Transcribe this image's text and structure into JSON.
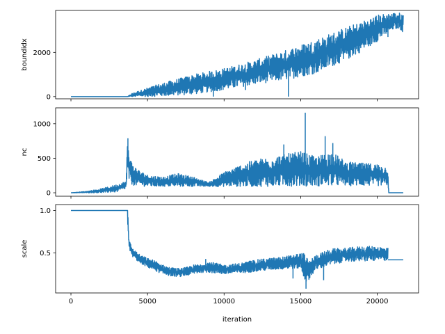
{
  "colors": {
    "series": "#1f77b4"
  },
  "chart_data": [
    {
      "type": "line",
      "id": "boundidx",
      "ylabel": "boundidx",
      "xlabel": "",
      "xlim": [
        -1000,
        22700
      ],
      "ylim": [
        -100,
        3900
      ],
      "xticks": [
        0,
        5000,
        10000,
        15000,
        20000
      ],
      "xtick_labels": [
        "",
        "",
        "",
        "",
        ""
      ],
      "yticks": [
        0,
        2000
      ],
      "ytick_labels": [
        "0",
        "2000"
      ],
      "series": [
        {
          "envelope": {
            "x": [
              0,
              3500,
              3700,
              4000,
              5000,
              6000,
              8000,
              10000,
              12000,
              14000,
              16000,
              18000,
              19000,
              20000,
              21000,
              21400,
              21700
            ],
            "upper": [
              0,
              0,
              0,
              150,
              400,
              620,
              1000,
              1280,
              1650,
              2100,
              2600,
              3150,
              3400,
              3700,
              3800,
              3800,
              3750
            ],
            "lower": [
              0,
              0,
              0,
              0,
              0,
              20,
              100,
              300,
              550,
              750,
              1050,
              1650,
              2050,
              2500,
              3000,
              3100,
              2900
            ]
          },
          "spikes": [
            {
              "x": 9300,
              "y": 0
            },
            {
              "x": 14200,
              "y": 0
            },
            {
              "x": 11400,
              "y": 300
            },
            {
              "x": 17800,
              "y": 1700
            },
            {
              "x": 20700,
              "y": 2700
            }
          ]
        }
      ]
    },
    {
      "type": "line",
      "id": "nc",
      "ylabel": "nc",
      "xlabel": "",
      "xlim": [
        -1000,
        22700
      ],
      "ylim": [
        -50,
        1230
      ],
      "xticks": [
        0,
        5000,
        10000,
        15000,
        20000
      ],
      "xtick_labels": [
        "",
        "",
        "",
        "",
        ""
      ],
      "yticks": [
        0,
        500,
        1000
      ],
      "ytick_labels": [
        "0",
        "500",
        "1000"
      ],
      "series": [
        {
          "envelope": {
            "x": [
              0,
              1000,
              2000,
              3000,
              3600,
              3700,
              3720,
              3800,
              4000,
              4500,
              5000,
              6000,
              7000,
              8000,
              9000,
              10000,
              11000,
              12000,
              13000,
              14000,
              15000,
              16000,
              17000,
              18000,
              19000,
              20000,
              20700,
              20750,
              21000,
              21700
            ],
            "upper": [
              0,
              20,
              60,
              120,
              170,
              780,
              700,
              600,
              420,
              320,
              260,
              230,
              280,
              230,
              150,
              300,
              400,
              480,
              520,
              560,
              600,
              520,
              600,
              450,
              430,
              420,
              370,
              0,
              0,
              0
            ],
            "lower": [
              0,
              0,
              0,
              10,
              60,
              300,
              230,
              160,
              110,
              95,
              90,
              90,
              90,
              90,
              90,
              90,
              90,
              90,
              90,
              95,
              95,
              95,
              100,
              100,
              100,
              100,
              100,
              0,
              0,
              0
            ]
          },
          "spikes": [
            {
              "x": 15300,
              "y": 1160
            },
            {
              "x": 13900,
              "y": 700
            },
            {
              "x": 16600,
              "y": 820
            },
            {
              "x": 17100,
              "y": 720
            },
            {
              "x": 3720,
              "y": 790
            }
          ]
        }
      ]
    },
    {
      "type": "line",
      "id": "scale",
      "ylabel": "scale",
      "xlabel": "iteration",
      "xlim": [
        -1000,
        22700
      ],
      "ylim": [
        0.03,
        1.07
      ],
      "xticks": [
        0,
        5000,
        10000,
        15000,
        20000
      ],
      "xtick_labels": [
        "0",
        "5000",
        "10000",
        "15000",
        "20000"
      ],
      "yticks": [
        0.5,
        1.0
      ],
      "ytick_labels": [
        "0.5",
        "1.0"
      ],
      "series": [
        {
          "envelope": {
            "x": [
              0,
              3700,
              3720,
              3800,
              4000,
              4500,
              5000,
              5500,
              6000,
              6500,
              7000,
              7500,
              8000,
              8500,
              9000,
              9500,
              10000,
              11000,
              12000,
              13000,
              14000,
              15000,
              15300,
              15500,
              16000,
              17000,
              18000,
              19000,
              20000,
              20700
            ],
            "upper": [
              1.0,
              1.0,
              0.98,
              0.65,
              0.56,
              0.48,
              0.44,
              0.41,
              0.36,
              0.33,
              0.32,
              0.33,
              0.36,
              0.37,
              0.4,
              0.38,
              0.36,
              0.38,
              0.42,
              0.44,
              0.46,
              0.5,
              0.5,
              0.4,
              0.48,
              0.55,
              0.56,
              0.58,
              0.58,
              0.56
            ],
            "lower": [
              1.0,
              1.0,
              0.7,
              0.55,
              0.46,
              0.38,
              0.33,
              0.29,
              0.25,
              0.23,
              0.22,
              0.23,
              0.25,
              0.27,
              0.27,
              0.26,
              0.25,
              0.26,
              0.28,
              0.3,
              0.31,
              0.32,
              0.15,
              0.18,
              0.3,
              0.36,
              0.4,
              0.4,
              0.41,
              0.41
            ]
          },
          "tail": {
            "x": [
              20700,
              21700
            ],
            "y": [
              0.42,
              0.42
            ]
          },
          "spikes": [
            {
              "x": 15350,
              "y": 0.08
            },
            {
              "x": 14500,
              "y": 0.2
            },
            {
              "x": 16500,
              "y": 0.18
            },
            {
              "x": 8800,
              "y": 0.43
            }
          ]
        }
      ]
    }
  ]
}
